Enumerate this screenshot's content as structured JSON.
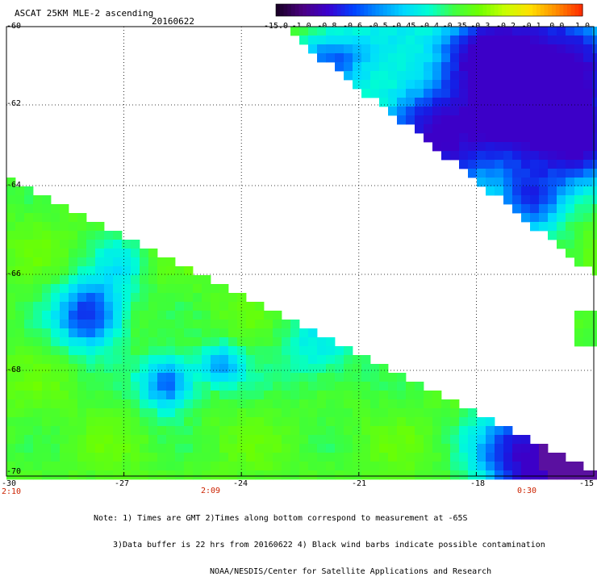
{
  "header": {
    "title": "ASCAT 25KM MLE-2 ascending",
    "date": "20160622"
  },
  "colorbar": {
    "labels": [
      "-15.0",
      "-1.0",
      "-0.8",
      "-0.6",
      "-0.5",
      "-0.45",
      "-0.4",
      "-0.35",
      "-0.3",
      "-0.2",
      "-0.1",
      "0.0",
      "1.0"
    ],
    "colors": [
      "#1a0028",
      "#4b0082",
      "#3a00d0",
      "#0040ff",
      "#0090ff",
      "#00d8ff",
      "#00ffd0",
      "#40ff40",
      "#70ff00",
      "#c8ff00",
      "#ffe000",
      "#ff9000",
      "#ff3000"
    ]
  },
  "map": {
    "lat_labels": [
      "-60",
      "-62",
      "-64",
      "-66",
      "-68",
      "-70"
    ],
    "lon_labels": [
      "-30",
      "-27",
      "-24",
      "-21",
      "-18",
      "-15"
    ],
    "time_labels": [
      "2:10",
      "2:09",
      "0:30"
    ],
    "lat_range": [
      -70,
      -60
    ],
    "lon_range": [
      -30,
      -15
    ]
  },
  "note": {
    "line1": "Note: 1) Times are GMT 2)Times along bottom correspond to measurement at -65S",
    "line2": "3)Data buffer is 22 hrs from 20160622 4) Black wind barbs indicate possible contamination",
    "line3": "NOAA/NESDIS/Center for Satellite Applications and Research"
  }
}
